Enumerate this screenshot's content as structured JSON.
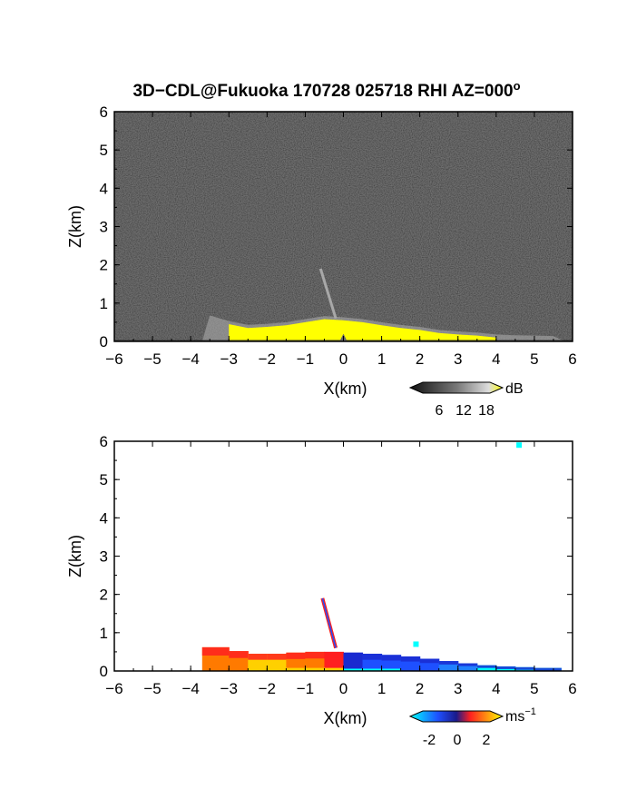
{
  "title": "3D−CDL@Fukuoka 170728 025718 RHI AZ=000",
  "title_degree_mark": "o",
  "colors": {
    "background": "#ffffff",
    "noise_dark": "#2a2a2a",
    "echo_yellow": "#ffff00",
    "beam_gray": "#a8a8a8"
  },
  "chart_data": [
    {
      "type": "heatmap",
      "panel": "reflectivity",
      "xlabel": "X(km)",
      "ylabel": "Z(km)",
      "xlim": [
        -6,
        6
      ],
      "ylim": [
        0,
        6
      ],
      "xticks": [
        -6,
        -5,
        -4,
        -3,
        -2,
        -1,
        0,
        1,
        2,
        3,
        4,
        5,
        6
      ],
      "yticks": [
        0,
        1,
        2,
        3,
        4,
        5,
        6
      ],
      "colorbar": {
        "unit": "dB",
        "ticks": [
          6,
          12,
          18
        ],
        "orientation": "horizontal",
        "placement": "bottom-right"
      },
      "echo_layer": {
        "x": [
          -3.5,
          -3,
          -2.5,
          -2,
          -1.5,
          -1,
          -0.5,
          0,
          0.5,
          1,
          1.5,
          2,
          2.5,
          3,
          3.5,
          4,
          4.5,
          5,
          5.5
        ],
        "top_km": [
          0.6,
          0.45,
          0.35,
          0.38,
          0.42,
          0.5,
          0.58,
          0.55,
          0.5,
          0.42,
          0.35,
          0.3,
          0.22,
          0.18,
          0.15,
          0.1,
          0.08,
          0.07,
          0.06
        ],
        "value_db": 18
      },
      "beam": {
        "x": [
          -0.6,
          -0.2
        ],
        "z": [
          1.9,
          0.6
        ]
      }
    },
    {
      "type": "heatmap",
      "panel": "doppler velocity",
      "xlabel": "X(km)",
      "ylabel": "Z(km)",
      "xlim": [
        -6,
        6
      ],
      "ylim": [
        0,
        6
      ],
      "xticks": [
        -6,
        -5,
        -4,
        -3,
        -2,
        -1,
        0,
        1,
        2,
        3,
        4,
        5,
        6
      ],
      "yticks": [
        0,
        1,
        2,
        3,
        4,
        5,
        6
      ],
      "colorbar": {
        "unit": "ms",
        "unit_exponent": "−1",
        "ticks": [
          -2,
          0,
          2
        ],
        "orientation": "horizontal",
        "placement": "bottom-right"
      },
      "echo_layer": {
        "x": [
          -3.7,
          -3,
          -2.5,
          -2,
          -1.5,
          -1,
          -0.5,
          0,
          0.5,
          1,
          1.5,
          2,
          2.5,
          3,
          3.5,
          4,
          4.5,
          5,
          5.7
        ],
        "top_km": [
          0.62,
          0.52,
          0.45,
          0.42,
          0.45,
          0.48,
          0.5,
          0.48,
          0.45,
          0.42,
          0.38,
          0.32,
          0.26,
          0.2,
          0.15,
          0.12,
          0.1,
          0.08,
          0.05
        ],
        "velocity_ms": [
          1,
          1.5,
          2,
          2,
          1.5,
          1,
          0.5,
          -0.5,
          -1,
          -1.5,
          -1.5,
          -1.5,
          -2,
          -2,
          -2.5,
          -2.5,
          -2.5,
          -2.5,
          -2.5
        ]
      },
      "beam": {
        "x": [
          -0.55,
          -0.2
        ],
        "z": [
          1.9,
          0.6
        ]
      },
      "isolated_points": [
        {
          "x": 4.6,
          "z": 5.9,
          "velocity_ms": -3
        },
        {
          "x": 1.9,
          "z": 0.7,
          "velocity_ms": -3
        }
      ]
    }
  ]
}
